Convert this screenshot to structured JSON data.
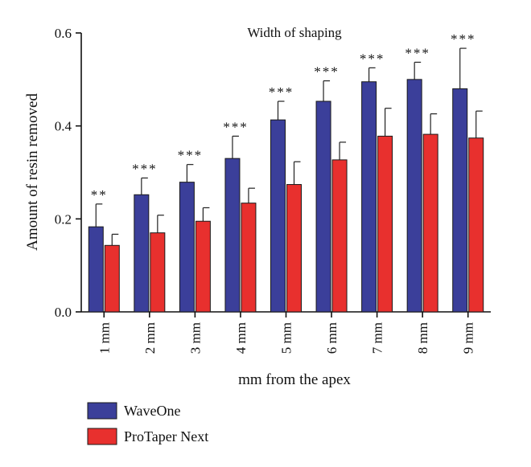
{
  "chart_data": {
    "type": "bar",
    "title": "Width of shaping",
    "xlabel": "mm from the apex",
    "ylabel": "Amount of resin removed",
    "ylim": [
      0,
      0.6
    ],
    "yticks": [
      "0.0",
      "0.2",
      "0.4",
      "0.6"
    ],
    "ytick_values": [
      0,
      0.2,
      0.4,
      0.6
    ],
    "categories": [
      "1 mm",
      "2 mm",
      "3 mm",
      "4 mm",
      "5 mm",
      "6 mm",
      "7 mm",
      "8 mm",
      "9 mm"
    ],
    "series": [
      {
        "name": "WaveOne",
        "color": "#3b3f9a",
        "values": [
          0.183,
          0.252,
          0.279,
          0.33,
          0.413,
          0.453,
          0.495,
          0.5,
          0.48
        ],
        "error_upper": [
          0.232,
          0.288,
          0.317,
          0.378,
          0.453,
          0.497,
          0.525,
          0.537,
          0.567
        ]
      },
      {
        "name": "ProTaper Next",
        "color": "#e8302e",
        "values": [
          0.143,
          0.17,
          0.195,
          0.234,
          0.274,
          0.327,
          0.378,
          0.382,
          0.374
        ],
        "error_upper": [
          0.167,
          0.208,
          0.224,
          0.266,
          0.323,
          0.365,
          0.438,
          0.426,
          0.432
        ]
      }
    ],
    "significance": [
      "**",
      "***",
      "***",
      "***",
      "***",
      "***",
      "***",
      "***",
      "***"
    ],
    "grid": false,
    "legend_position": "bottom-left"
  }
}
